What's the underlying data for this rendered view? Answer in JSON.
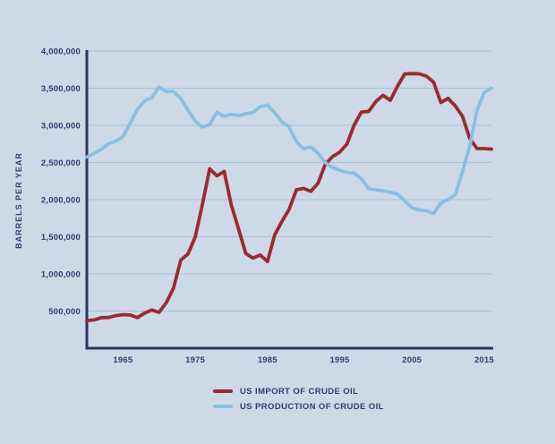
{
  "colors": {
    "background": "#cdd9e7",
    "grid": "#a4c2d8",
    "axis": "#2a3462",
    "text": "#2f3e76",
    "import_line": "#9c2a2e",
    "production_line": "#8abfe3"
  },
  "legend": {
    "import_label": "US IMPORT OF CRUDE OIL",
    "production_label": "US PRODUCTION OF CRUDE OIL"
  },
  "chart_data": {
    "type": "line",
    "title": "",
    "xlabel": "",
    "ylabel": "BARRELS PER YEAR",
    "xlim": [
      1960,
      2016
    ],
    "ylim": [
      0,
      4000000
    ],
    "grid": "horizontal",
    "legend_position": "bottom-center",
    "x_ticks": [
      1965,
      1975,
      1985,
      1995,
      2005,
      2015
    ],
    "y_ticks": [
      500000,
      1000000,
      1500000,
      2000000,
      2500000,
      3000000,
      3500000,
      4000000
    ],
    "y_tick_labels": [
      "500,000",
      "1,000,000",
      "1,500,000",
      "2,000,000",
      "2,500,000",
      "3,000,000",
      "3,500,000",
      "4,000,000"
    ],
    "x": [
      1960,
      1961,
      1962,
      1963,
      1964,
      1965,
      1966,
      1967,
      1968,
      1969,
      1970,
      1971,
      1972,
      1973,
      1974,
      1975,
      1976,
      1977,
      1978,
      1979,
      1980,
      1981,
      1982,
      1983,
      1984,
      1985,
      1986,
      1987,
      1988,
      1989,
      1990,
      1991,
      1992,
      1993,
      1994,
      1995,
      1996,
      1997,
      1998,
      1999,
      2000,
      2001,
      2002,
      2003,
      2004,
      2005,
      2006,
      2007,
      2008,
      2009,
      2010,
      2011,
      2012,
      2013,
      2014,
      2015,
      2016
    ],
    "series": [
      {
        "name": "US IMPORT OF CRUDE OIL",
        "color": "#9c2a2e",
        "values": [
          372000,
          381000,
          411000,
          413000,
          439000,
          452000,
          447000,
          412000,
          472000,
          514000,
          483000,
          613000,
          811000,
          1184000,
          1269000,
          1498000,
          1935000,
          2414000,
          2320000,
          2380000,
          1926000,
          1605000,
          1273000,
          1215000,
          1254000,
          1168000,
          1525000,
          1706000,
          1869000,
          2133000,
          2151000,
          2111000,
          2220000,
          2477000,
          2578000,
          2639000,
          2748000,
          3002000,
          3178000,
          3187000,
          3320000,
          3405000,
          3336000,
          3528000,
          3692000,
          3696000,
          3693000,
          3661000,
          3581000,
          3307000,
          3363000,
          3261000,
          3120000,
          2821000,
          2687000,
          2687000,
          2680000
        ]
      },
      {
        "name": "US PRODUCTION OF CRUDE OIL",
        "color": "#8abfe3",
        "values": [
          2575000,
          2622000,
          2676000,
          2753000,
          2787000,
          2849000,
          3028000,
          3216000,
          3329000,
          3372000,
          3517000,
          3454000,
          3455000,
          3361000,
          3203000,
          3057000,
          2976000,
          3009000,
          3178000,
          3121000,
          3146000,
          3129000,
          3157000,
          3171000,
          3250000,
          3275000,
          3168000,
          3047000,
          2979000,
          2779000,
          2685000,
          2707000,
          2625000,
          2499000,
          2431000,
          2394000,
          2366000,
          2355000,
          2282000,
          2147000,
          2131000,
          2118000,
          2097000,
          2073000,
          1983000,
          1890000,
          1862000,
          1848000,
          1812000,
          1957000,
          2002000,
          2066000,
          2378000,
          2721000,
          3203000,
          3442000,
          3500000
        ]
      }
    ]
  }
}
